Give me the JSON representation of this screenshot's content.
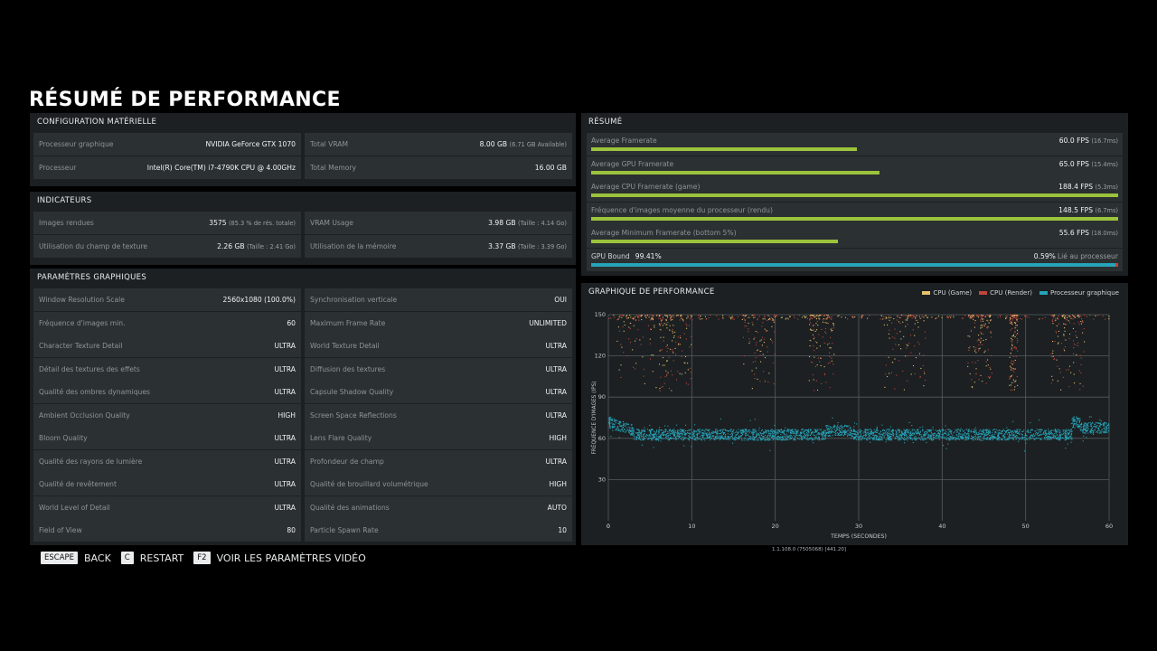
{
  "title": "RÉSUMÉ DE PERFORMANCE",
  "hardware": {
    "header": "CONFIGURATION MATÉRIELLE",
    "rows": [
      [
        {
          "k": "Processeur graphique",
          "v": "NVIDIA GeForce GTX 1070",
          "n": ""
        },
        {
          "k": "Total VRAM",
          "v": "8.00 GB",
          "n": "(6.71 GB Available)"
        }
      ],
      [
        {
          "k": "Processeur",
          "v": "Intel(R) Core(TM) i7-4790K CPU @ 4.00GHz",
          "n": ""
        },
        {
          "k": "Total Memory",
          "v": "16.00 GB",
          "n": ""
        }
      ]
    ]
  },
  "indicators": {
    "header": "INDICATEURS",
    "rows": [
      [
        {
          "k": "Images rendues",
          "v": "3575",
          "n": "(85.3 % de rés. totale)"
        },
        {
          "k": "VRAM Usage",
          "v": "3.98 GB",
          "n": "(Taille : 4.14 Go)"
        }
      ],
      [
        {
          "k": "Utilisation du champ de texture",
          "v": "2.26 GB",
          "n": "(Taille : 2.41 Go)"
        },
        {
          "k": "Utilisation de la mémoire",
          "v": "3.37 GB",
          "n": "(Taille : 3.39 Go)"
        }
      ]
    ]
  },
  "graphics": {
    "header": "PARAMÈTRES GRAPHIQUES",
    "rows": [
      [
        {
          "k": "Window Resolution Scale",
          "v": "2560x1080 (100.0%)"
        },
        {
          "k": "Synchronisation verticale",
          "v": "OUI"
        }
      ],
      [
        {
          "k": "Fréquence d'images min.",
          "v": "60"
        },
        {
          "k": "Maximum Frame Rate",
          "v": "UNLIMITED"
        }
      ],
      [
        {
          "k": "Character Texture Detail",
          "v": "ULTRA"
        },
        {
          "k": "World Texture Detail",
          "v": "ULTRA"
        }
      ],
      [
        {
          "k": "Détail des textures des effets",
          "v": "ULTRA"
        },
        {
          "k": "Diffusion des textures",
          "v": "ULTRA"
        }
      ],
      [
        {
          "k": "Qualité des ombres dynamiques",
          "v": "ULTRA"
        },
        {
          "k": "Capsule Shadow Quality",
          "v": "ULTRA"
        }
      ],
      [
        {
          "k": "Ambient Occlusion Quality",
          "v": "HIGH"
        },
        {
          "k": "Screen Space Reflections",
          "v": "ULTRA"
        }
      ],
      [
        {
          "k": "Bloom Quality",
          "v": "ULTRA"
        },
        {
          "k": "Lens Flare Quality",
          "v": "HIGH"
        }
      ],
      [
        {
          "k": "Qualité des rayons de lumière",
          "v": "ULTRA"
        },
        {
          "k": "Profondeur de champ",
          "v": "ULTRA"
        }
      ],
      [
        {
          "k": "Qualité de revêtement",
          "v": "ULTRA"
        },
        {
          "k": "Qualité de brouillard volumétrique",
          "v": "HIGH"
        }
      ],
      [
        {
          "k": "World Level of Detail",
          "v": "ULTRA"
        },
        {
          "k": "Qualité des animations",
          "v": "AUTO"
        }
      ],
      [
        {
          "k": "Field of View",
          "v": "80"
        },
        {
          "k": "Particle Spawn Rate",
          "v": "10"
        }
      ]
    ]
  },
  "summary": {
    "header": "RÉSUMÉ",
    "rows": [
      {
        "k": "Average Framerate",
        "v": "60.0 FPS",
        "n": "(16.7ms)",
        "fill": 0.505
      },
      {
        "k": "Average GPU Framerate",
        "v": "65.0 FPS",
        "n": "(15.4ms)",
        "fill": 0.547
      },
      {
        "k": "Average CPU Framerate (game)",
        "v": "188.4 FPS",
        "n": "(5.3ms)",
        "fill": 1.0
      },
      {
        "k": "Fréquence d'images moyenne du processeur (rendu)",
        "v": "148.5 FPS",
        "n": "(6.7ms)",
        "fill": 1.0
      },
      {
        "k": "Average Minimum Framerate (bottom 5%)",
        "v": "55.6 FPS",
        "n": "(18.0ms)",
        "fill": 0.468
      }
    ],
    "gpu_bound": {
      "label": "GPU Bound",
      "value": "99.41%",
      "cpu_value": "0.59%",
      "cpu_label": "Lié au processeur",
      "fill": 0.9941
    }
  },
  "colors": {
    "bar_green": "#9bc33c",
    "gpu": "#26a3b8",
    "cpu_game": "#e6c36b",
    "cpu_render": "#c0453d"
  },
  "chart": {
    "header": "GRAPHIQUE DE PERFORMANCE",
    "legend": [
      "CPU (Game)",
      "CPU (Render)",
      "Processeur graphique"
    ]
  },
  "chart_data": {
    "type": "scatter",
    "xlabel": "TEMPS (SECONDES)",
    "ylabel": "FRÉQUENCE D'IMAGES (IPS)",
    "xlim": [
      0,
      60
    ],
    "ylim": [
      0,
      150
    ],
    "x_ticks": [
      "0",
      "10",
      "20",
      "30",
      "40",
      "50",
      "60"
    ],
    "y_ticks": [
      "150",
      "120",
      "90",
      "60",
      "30"
    ],
    "grid": true,
    "legend_position": "top-right",
    "series": [
      {
        "name": "CPU (Game)",
        "color": "#e6c36b",
        "approx_range": [
          100,
          150
        ]
      },
      {
        "name": "CPU (Render)",
        "color": "#c0453d",
        "approx_range": [
          100,
          150
        ]
      },
      {
        "name": "Processeur graphique",
        "color": "#26a3b8",
        "approx_range": [
          55,
          80
        ],
        "typical": 63
      }
    ]
  },
  "footer": [
    {
      "key": "ESCAPE",
      "label": "BACK"
    },
    {
      "key": "C",
      "label": "RESTART"
    },
    {
      "key": "F2",
      "label": "VOIR LES PARAMÈTRES VIDÉO"
    }
  ],
  "build": "1.1.108.0 (7505068) [441.20]"
}
